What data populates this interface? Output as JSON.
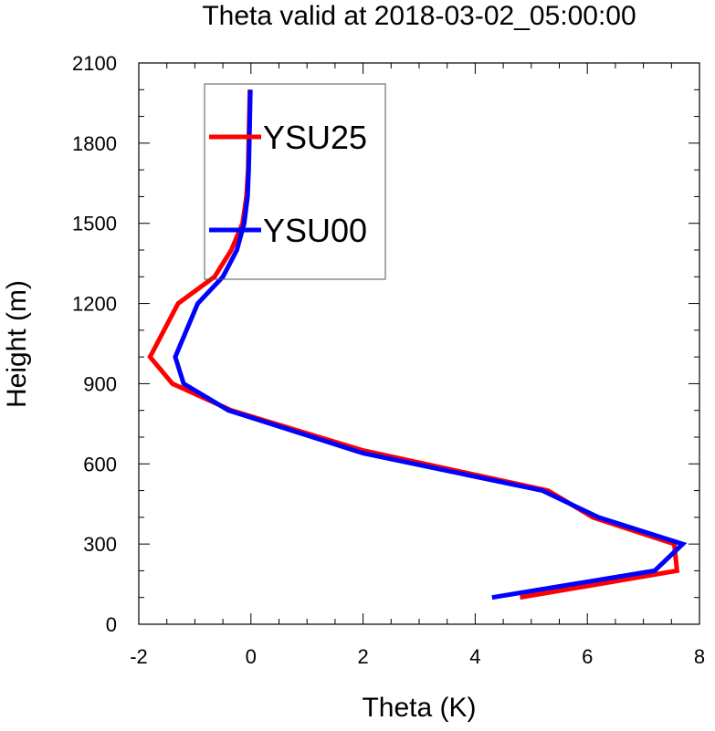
{
  "chart_data": {
    "type": "line",
    "title": "Theta valid at 2018-03-02_05:00:00",
    "xlabel": "Theta (K)",
    "ylabel": "Height (m)",
    "xlim": [
      -2,
      8
    ],
    "ylim": [
      0,
      2100
    ],
    "x_ticks": [
      -2,
      0,
      2,
      4,
      6,
      8
    ],
    "x_tick_labels": [
      "-2",
      "0",
      "2",
      "4",
      "6",
      "8"
    ],
    "x_minor_step": 0.5,
    "y_ticks": [
      0,
      300,
      600,
      900,
      1200,
      1500,
      1800,
      2100
    ],
    "y_tick_labels": [
      "0",
      "300",
      "600",
      "900",
      "1200",
      "1500",
      "1800",
      "2100"
    ],
    "y_minor_step": 100,
    "grid": false,
    "legend_position": "top-left",
    "series": [
      {
        "name": "YSU25",
        "color": "#ff0000",
        "points": [
          [
            4.8,
            100
          ],
          [
            7.6,
            200
          ],
          [
            7.55,
            300
          ],
          [
            6.1,
            400
          ],
          [
            5.3,
            500
          ],
          [
            2.0,
            650
          ],
          [
            -0.35,
            800
          ],
          [
            -1.4,
            900
          ],
          [
            -1.8,
            1000
          ],
          [
            -1.3,
            1200
          ],
          [
            -0.65,
            1300
          ],
          [
            -0.35,
            1400
          ],
          [
            -0.15,
            1500
          ],
          [
            -0.08,
            1600
          ],
          [
            -0.05,
            1700
          ],
          [
            -0.04,
            1800
          ],
          [
            -0.03,
            1900
          ],
          [
            -0.02,
            2000
          ]
        ]
      },
      {
        "name": "YSU00",
        "color": "#0000ff",
        "points": [
          [
            4.3,
            100
          ],
          [
            7.2,
            200
          ],
          [
            7.7,
            300
          ],
          [
            6.2,
            400
          ],
          [
            5.2,
            500
          ],
          [
            2.0,
            640
          ],
          [
            -0.4,
            800
          ],
          [
            -1.2,
            900
          ],
          [
            -1.35,
            1000
          ],
          [
            -0.95,
            1200
          ],
          [
            -0.5,
            1300
          ],
          [
            -0.25,
            1400
          ],
          [
            -0.12,
            1500
          ],
          [
            -0.06,
            1600
          ],
          [
            -0.04,
            1700
          ],
          [
            -0.03,
            1800
          ],
          [
            -0.02,
            1900
          ],
          [
            -0.01,
            2000
          ]
        ]
      }
    ]
  }
}
